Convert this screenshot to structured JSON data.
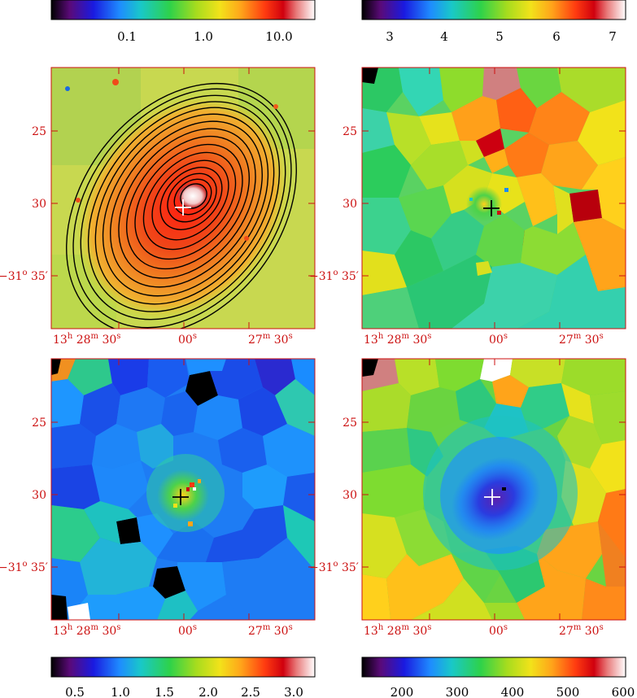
{
  "colorbars": [
    {
      "id": "cb-top-left",
      "ticks": [
        "0.1",
        "1.0",
        "10.0"
      ]
    },
    {
      "id": "cb-top-right",
      "ticks": [
        "3",
        "4",
        "5",
        "6",
        "7"
      ]
    },
    {
      "id": "cb-bot-left",
      "ticks": [
        "0.5",
        "1.0",
        "1.5",
        "2.0",
        "2.5",
        "3.0"
      ]
    },
    {
      "id": "cb-bot-right",
      "ticks": [
        "200",
        "300",
        "400",
        "500",
        "600"
      ]
    }
  ],
  "axes": {
    "ra": {
      "h": "13",
      "m": "28",
      "s1": "30",
      "s2": "00",
      "m2": "27",
      "s3": "30"
    },
    "dec": {
      "t1": "25",
      "t2": "30",
      "deg": "−31",
      "min": "35′"
    }
  },
  "colors": {
    "label_red": "#cc1111"
  }
}
